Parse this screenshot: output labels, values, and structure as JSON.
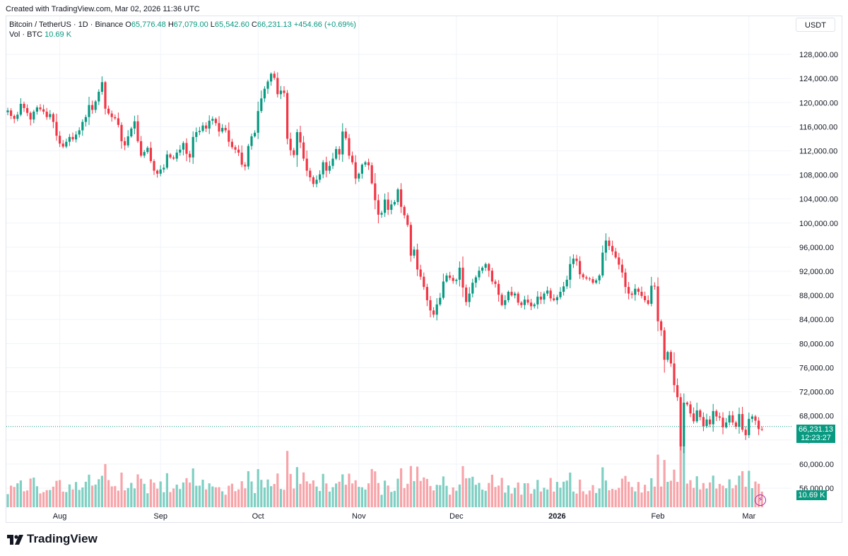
{
  "header": {
    "created": "Created with TradingView.com, Mar 02, 2026 11:36 UTC"
  },
  "legend": {
    "symbol": "Bitcoin / TetherUS · 1D · Binance",
    "o_label": "O",
    "o_value": "65,776.48",
    "h_label": "H",
    "h_value": "67,079.00",
    "l_label": "L",
    "l_value": "65,542.60",
    "c_label": "C",
    "c_value": "66,231.13",
    "change": "+454.66 (+0.69%)",
    "vol_label": "Vol · BTC",
    "vol_value": "10.69 K"
  },
  "currency": "USDT",
  "price_tag": {
    "price": "66,231.13",
    "countdown": "12:23:27"
  },
  "vol_tag": "10.69 K",
  "brand": "TradingView",
  "colors": {
    "up": "#089981",
    "down": "#f23645",
    "up_vol": "#7fcfc3",
    "down_vol": "#f7a4a9"
  },
  "chart_data": {
    "type": "candlestick",
    "title": "Bitcoin / TetherUS · 1D · Binance",
    "ylim": [
      54000,
      130000
    ],
    "y_ticks": [
      "128,000.00",
      "124,000.00",
      "120,000.00",
      "116,000.00",
      "112,000.00",
      "108,000.00",
      "104,000.00",
      "100,000.00",
      "96,000.00",
      "92,000.00",
      "88,000.00",
      "84,000.00",
      "80,000.00",
      "76,000.00",
      "72,000.00",
      "68,000.00",
      "64,000.00",
      "60,000.00",
      "56,000.00"
    ],
    "x_ticks": [
      {
        "label": "Aug",
        "date": "2025-08-01"
      },
      {
        "label": "Sep",
        "date": "2025-09-01"
      },
      {
        "label": "Oct",
        "date": "2025-10-01"
      },
      {
        "label": "Nov",
        "date": "2025-11-01"
      },
      {
        "label": "Dec",
        "date": "2025-12-01"
      },
      {
        "label": "2026",
        "date": "2026-01-01"
      },
      {
        "label": "Feb",
        "date": "2026-02-01"
      },
      {
        "label": "Mar",
        "date": "2026-03-01"
      }
    ],
    "start_date": "2025-07-16",
    "last_price": 66231.13,
    "closes": [
      118700,
      117800,
      117300,
      118000,
      119800,
      119100,
      118300,
      117200,
      118500,
      119200,
      118900,
      118500,
      117600,
      118100,
      116800,
      114500,
      113200,
      112700,
      113500,
      114300,
      113900,
      114700,
      115400,
      116800,
      117600,
      119600,
      118800,
      120200,
      121800,
      123400,
      119000,
      118200,
      117600,
      117400,
      116300,
      113600,
      112900,
      114400,
      115700,
      116900,
      113600,
      111200,
      111800,
      112500,
      110300,
      108700,
      108200,
      108900,
      109200,
      111400,
      110900,
      110700,
      111700,
      112200,
      113300,
      111500,
      110900,
      114300,
      115100,
      115300,
      116200,
      115700,
      117000,
      117300,
      116600,
      115200,
      115800,
      115400,
      113500,
      112600,
      112200,
      111700,
      109700,
      109400,
      112800,
      114400,
      115000,
      118600,
      120700,
      122300,
      123500,
      124800,
      124100,
      121400,
      122000,
      121600,
      114000,
      112100,
      111300,
      115100,
      113400,
      110700,
      108700,
      107600,
      106500,
      107200,
      108100,
      110100,
      108700,
      109500,
      110700,
      112300,
      111400,
      115200,
      114100,
      111200,
      110100,
      107400,
      108200,
      109700,
      110100,
      109600,
      106600,
      103800,
      101400,
      101700,
      103900,
      102200,
      103100,
      103500,
      105600,
      102700,
      101300,
      99700,
      94600,
      95600,
      92300,
      91100,
      89400,
      87200,
      85500,
      84800,
      86500,
      87600,
      90300,
      91300,
      90900,
      90400,
      90600,
      92600,
      89300,
      86900,
      88300,
      90100,
      91000,
      92100,
      92600,
      93200,
      92100,
      90300,
      89900,
      88100,
      86400,
      87200,
      88600,
      88000,
      88300,
      86800,
      86400,
      87300,
      86800,
      86200,
      86500,
      87800,
      87300,
      88300,
      88800,
      87500,
      87200,
      87700,
      88600,
      89500,
      90600,
      93200,
      94100,
      93700,
      91500,
      91000,
      90800,
      90700,
      90100,
      90500,
      91300,
      95100,
      97100,
      96200,
      95300,
      94300,
      93100,
      91800,
      89400,
      88300,
      88100,
      89100,
      88600,
      87900,
      87200,
      86600,
      89600,
      89500,
      83700,
      82200,
      77300,
      78600,
      76700,
      73100,
      71100,
      62900,
      70200,
      69900,
      68400,
      67100,
      68900,
      67800,
      66300,
      67400,
      66600,
      68800,
      67900,
      67700,
      66100,
      66900,
      68100,
      66900,
      66200,
      68300,
      65700,
      64800,
      67500,
      67900,
      67200,
      65800,
      65776
    ]
  }
}
